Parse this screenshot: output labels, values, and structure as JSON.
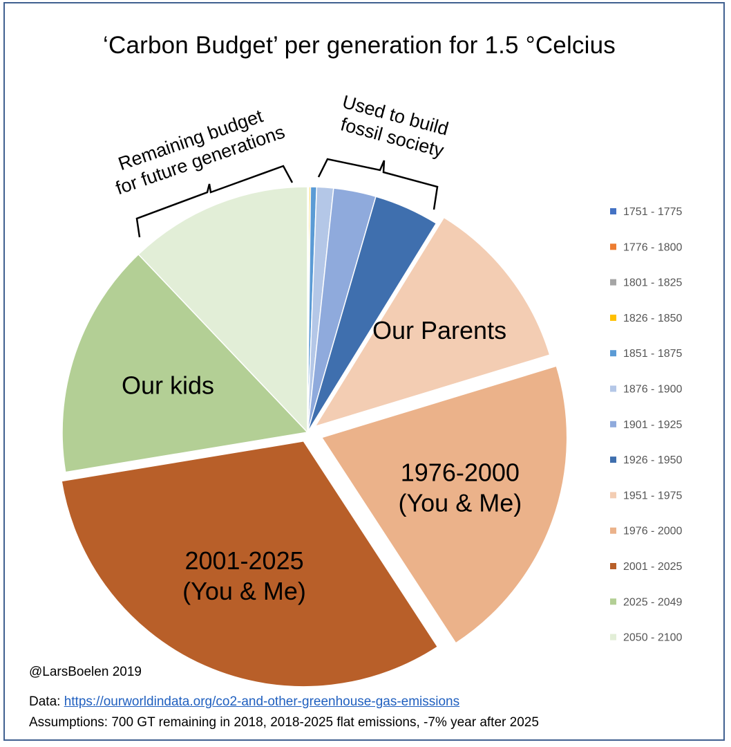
{
  "chart_data": {
    "type": "pie",
    "title": "‘Carbon Budget’ per generation for 1.5 °Celcius",
    "slices": [
      {
        "name": "1751 - 1775",
        "value": 0.02,
        "color": "#4472c4",
        "label": ""
      },
      {
        "name": "1776 - 1800",
        "value": 0.03,
        "color": "#ed7d31",
        "label": ""
      },
      {
        "name": "1801 - 1825",
        "value": 0.05,
        "color": "#a5a5a5",
        "label": ""
      },
      {
        "name": "1826 - 1850",
        "value": 0.1,
        "color": "#ffc000",
        "label": ""
      },
      {
        "name": "1851 - 1875",
        "value": 0.4,
        "color": "#5b9bd5",
        "label": ""
      },
      {
        "name": "1876 - 1900",
        "value": 1.1,
        "color": "#b4c7e7",
        "label": ""
      },
      {
        "name": "1901 - 1925",
        "value": 2.8,
        "color": "#8faadc",
        "label": ""
      },
      {
        "name": "1926 - 1950",
        "value": 4.3,
        "color": "#3f6fae",
        "label": ""
      },
      {
        "name": "1951 - 1975",
        "value": 11.5,
        "color": "#f3cdb3",
        "label": "Our Parents",
        "explode": 14
      },
      {
        "name": "1976 - 2000",
        "value": 20.5,
        "color": "#ebb28a",
        "label": "1976-2000\n(You & Me)",
        "explode": 22
      },
      {
        "name": "2001 - 2025",
        "value": 31.6,
        "color": "#b85f29",
        "label": "2001-2025\n(You & Me)",
        "explode": 14
      },
      {
        "name": "2025 - 2049",
        "value": 15.5,
        "color": "#b3cf95",
        "label": "Our kids"
      },
      {
        "name": "2050 - 2100",
        "value": 12.1,
        "color": "#e2eed7",
        "label": ""
      }
    ],
    "annotations": [
      {
        "text": "Remaining budget\nfor future generations"
      },
      {
        "text": "Used to build\nfossil society"
      }
    ],
    "legend": "right"
  },
  "footer": {
    "credit": "@LarsBoelen 2019",
    "data_prefix": "Data: ",
    "data_link": "https://ourworldindata.org/co2-and-other-greenhouse-gas-emissions",
    "assumptions": "Assumptions: 700 GT remaining in 2018, 2018-2025 flat emissions, -7% year after 2025"
  }
}
